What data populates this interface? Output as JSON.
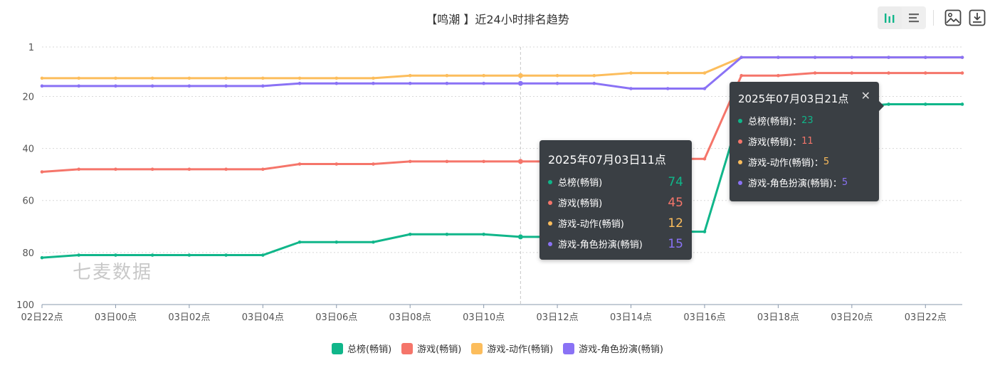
{
  "title": "【鸣潮 】近24小时排名趋势",
  "watermark": "七麦数据",
  "toolbar": {
    "icons": [
      "bar-chart-icon",
      "list-icon",
      "image-download-icon",
      "download-icon"
    ]
  },
  "chart_data": {
    "type": "line",
    "categories": [
      "02日22点",
      "02日23点",
      "03日00点",
      "03日01点",
      "03日02点",
      "03日03点",
      "03日04点",
      "03日05点",
      "03日06点",
      "03日07点",
      "03日08点",
      "03日09点",
      "03日10点",
      "03日11点",
      "03日12点",
      "03日13点",
      "03日14点",
      "03日15点",
      "03日16点",
      "03日17点",
      "03日18点",
      "03日19点",
      "03日20点",
      "03日21点",
      "03日22点",
      "03日23点"
    ],
    "tick_labels": [
      "02日22点",
      "03日00点",
      "03日02点",
      "03日04点",
      "03日06点",
      "03日08点",
      "03日10点",
      "03日12点",
      "03日14点",
      "03日16点",
      "03日18点",
      "03日20点",
      "03日22点"
    ],
    "y_ticks": [
      1,
      20,
      40,
      60,
      80,
      100
    ],
    "ylim": [
      1,
      100
    ],
    "y_inverted": true,
    "grid": true,
    "legend_position": "bottom",
    "series": [
      {
        "name": "总榜(畅销)",
        "color": "#10b68a",
        "values": [
          82,
          81,
          81,
          81,
          81,
          81,
          81,
          76,
          76,
          76,
          73,
          73,
          73,
          74,
          74,
          73,
          72,
          72,
          72,
          25,
          24,
          24,
          24,
          23,
          23,
          23
        ]
      },
      {
        "name": "游戏(畅销)",
        "color": "#f5756a",
        "values": [
          49,
          48,
          48,
          48,
          48,
          48,
          48,
          46,
          46,
          46,
          45,
          45,
          45,
          45,
          45,
          45,
          44,
          44,
          44,
          12,
          12,
          11,
          11,
          11,
          11,
          11
        ]
      },
      {
        "name": "游戏-动作(畅销)",
        "color": "#fcbd5c",
        "values": [
          13,
          13,
          13,
          13,
          13,
          13,
          13,
          13,
          13,
          13,
          12,
          12,
          12,
          12,
          12,
          12,
          11,
          11,
          11,
          5,
          5,
          5,
          5,
          5,
          5,
          5
        ]
      },
      {
        "name": "游戏-角色扮演(畅销)",
        "color": "#8a72f5",
        "values": [
          16,
          16,
          16,
          16,
          16,
          16,
          16,
          15,
          15,
          15,
          15,
          15,
          15,
          15,
          15,
          15,
          17,
          17,
          17,
          5,
          5,
          5,
          5,
          5,
          5,
          5
        ]
      }
    ]
  },
  "tooltip1": {
    "title": "2025年07月03日11点",
    "rows": [
      {
        "name": "总榜(畅销)",
        "value": "74",
        "color": "#10b68a"
      },
      {
        "name": "游戏(畅销)",
        "value": "45",
        "color": "#f5756a"
      },
      {
        "name": "游戏-动作(畅销)",
        "value": "12",
        "color": "#fcbd5c"
      },
      {
        "name": "游戏-角色扮演(畅销)",
        "value": "15",
        "color": "#8a72f5"
      }
    ]
  },
  "tooltip2": {
    "title": "2025年07月03日21点",
    "close_icon": "close-icon",
    "rows": [
      {
        "name": "总榜(畅销)：",
        "value": "23",
        "color": "#10b68a"
      },
      {
        "name": "游戏(畅销)：",
        "value": "11",
        "color": "#f5756a"
      },
      {
        "name": "游戏-动作(畅销)：",
        "value": "5",
        "color": "#fcbd5c"
      },
      {
        "name": "游戏-角色扮演(畅销)：",
        "value": "5",
        "color": "#8a72f5"
      }
    ]
  }
}
